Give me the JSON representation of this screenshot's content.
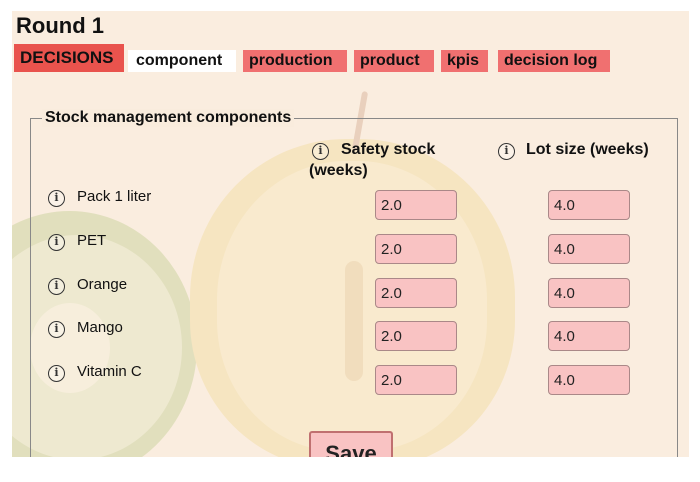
{
  "round_title": "Round 1",
  "tabs": {
    "decisions": "DECISIONS",
    "component": "component",
    "production": "production",
    "product": "product",
    "kpis": "kpis",
    "decision_log": "decision log"
  },
  "panel": {
    "legend": "Stock management components",
    "col_safety_line1": "Safety stock",
    "col_safety_line2": "(weeks)",
    "col_lot": "Lot size (weeks)",
    "rows": [
      {
        "label": "Pack 1 liter",
        "safety_stock": "2.0",
        "lot_size": "4.0"
      },
      {
        "label": "PET",
        "safety_stock": "2.0",
        "lot_size": "4.0"
      },
      {
        "label": "Orange",
        "safety_stock": "2.0",
        "lot_size": "4.0"
      },
      {
        "label": "Mango",
        "safety_stock": "2.0",
        "lot_size": "4.0"
      },
      {
        "label": "Vitamin C",
        "safety_stock": "2.0",
        "lot_size": "4.0"
      }
    ]
  },
  "save_label": "Save",
  "icons": {
    "info": "info-icon"
  },
  "colors": {
    "tab_active": "#e9534d",
    "tab_inactive": "#f07070",
    "input_fill": "#f9c3c3",
    "background": "#f8eddf"
  }
}
